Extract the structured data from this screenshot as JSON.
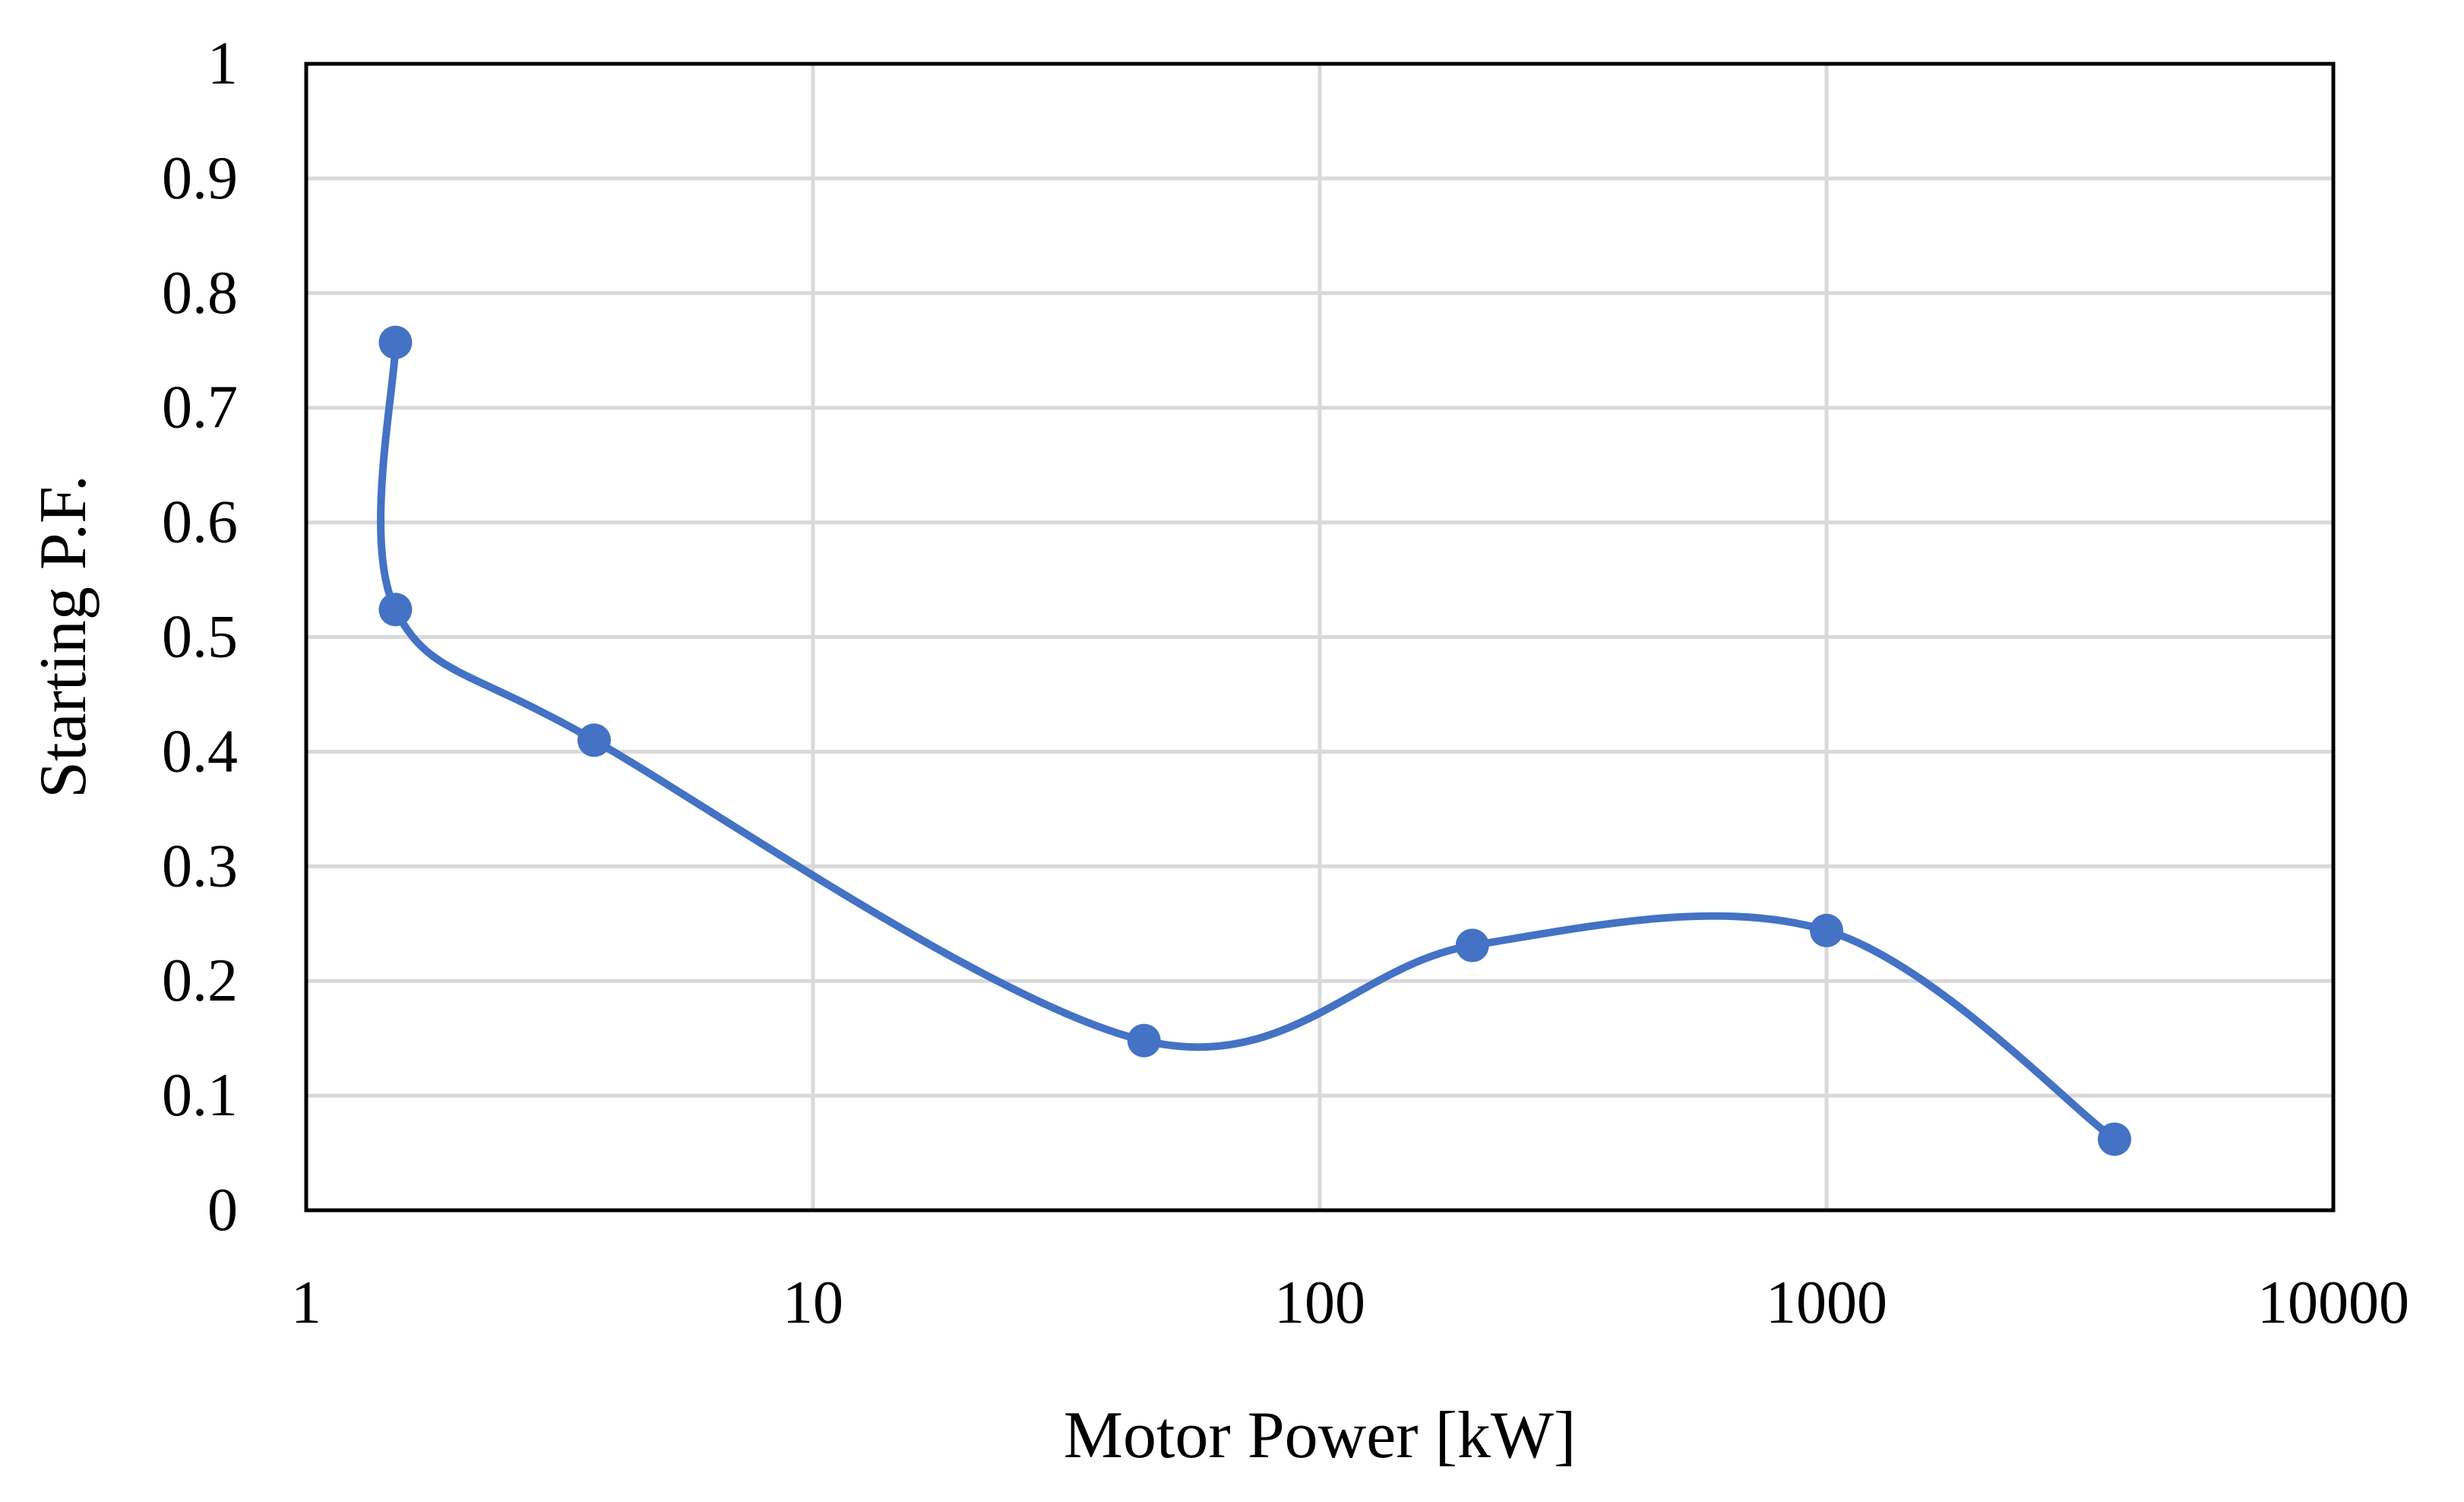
{
  "chart_data": {
    "type": "scatter",
    "title": "",
    "xlabel": "Motor Power [kW]",
    "ylabel": "Starting P.F.",
    "x_scale": "log",
    "xlim": [
      1,
      10000
    ],
    "ylim": [
      0,
      1
    ],
    "x_ticks": [
      1,
      10,
      100,
      1000,
      10000
    ],
    "x_tick_labels": [
      "1",
      "10",
      "100",
      "1000",
      "10000"
    ],
    "y_ticks": [
      0,
      0.1,
      0.2,
      0.3,
      0.4,
      0.5,
      0.6,
      0.7,
      0.8,
      0.9,
      1
    ],
    "y_tick_labels": [
      "0",
      "0.1",
      "0.2",
      "0.3",
      "0.4",
      "0.5",
      "0.6",
      "0.7",
      "0.8",
      "0.9",
      "1"
    ],
    "grid": true,
    "smooth_line": true,
    "legend": "none",
    "series": [
      {
        "name": "Starting P.F.",
        "color": "#4472c4",
        "x": [
          1.5,
          1.5,
          3.7,
          45,
          200,
          1000,
          3700
        ],
        "y": [
          0.757,
          0.524,
          0.41,
          0.148,
          0.231,
          0.244,
          0.062
        ]
      }
    ]
  }
}
